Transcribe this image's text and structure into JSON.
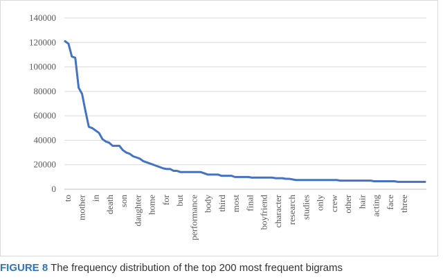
{
  "caption": {
    "label": "FIGURE 8",
    "text": "The frequency distribution of the top 200 most frequent bigrams"
  },
  "colors": {
    "line": "#4472c4",
    "grid": "#d9d9d9",
    "axis": "#bfbfbf",
    "caption_label": "#2e75b6"
  },
  "chart_data": {
    "type": "line",
    "title": "",
    "xlabel": "",
    "ylabel": "",
    "ylim": [
      0,
      140000
    ],
    "yticks": [
      0,
      20000,
      40000,
      60000,
      80000,
      100000,
      120000,
      140000
    ],
    "grid": true,
    "legend": "none",
    "x_tick_labels": [
      "to",
      "mother",
      "in",
      "death",
      "son",
      "daughter",
      "home",
      "for",
      "but",
      "performance",
      "body",
      "third",
      "most",
      "final",
      "boyfriend",
      "character",
      "research",
      "studies",
      "only",
      "crew",
      "other",
      "hair",
      "acting",
      "face",
      "three"
    ],
    "series": [
      {
        "values": [
          121000,
          119000,
          108500,
          107500,
          83000,
          78000,
          64000,
          51000,
          50000,
          48000,
          46000,
          41000,
          39000,
          38000,
          35500,
          35500,
          35500,
          32000,
          30000,
          29000,
          27000,
          26000,
          25000,
          23000,
          22000,
          21000,
          20000,
          19000,
          18000,
          17000,
          16500,
          16500,
          15000,
          15000,
          14000,
          14000,
          14000,
          14000,
          14000,
          14000,
          14000,
          13000,
          12000,
          12000,
          12000,
          12000,
          11000,
          11000,
          11000,
          11000,
          10000,
          10000,
          10000,
          10000,
          10000,
          9500,
          9500,
          9500,
          9500,
          9500,
          9500,
          9500,
          9000,
          9000,
          9000,
          8500,
          8500,
          8000,
          7500,
          7500,
          7500,
          7500,
          7500,
          7500,
          7500,
          7500,
          7500,
          7500,
          7500,
          7500,
          7500,
          7000,
          7000,
          7000,
          7000,
          7000,
          7000,
          7000,
          7000,
          7000,
          7000,
          6500,
          6500,
          6500,
          6500,
          6500,
          6500,
          6500,
          6000,
          6000,
          6000,
          6000,
          6000,
          6000,
          6000,
          6000,
          6000
        ]
      }
    ]
  }
}
